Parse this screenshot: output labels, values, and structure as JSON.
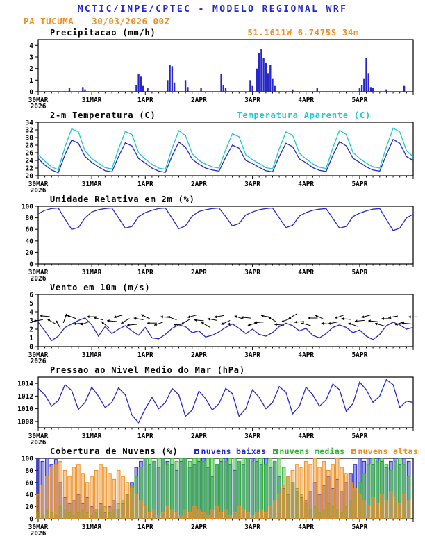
{
  "header": {
    "title": "MCTIC/INPE/CPTEC - MODELO REGIONAL WRF",
    "station": "PA TUCUMA",
    "run": "30/03/2026 00Z"
  },
  "colors": {
    "blue": "#2828c8",
    "cyan": "#1ec9c9",
    "green": "#2eb82e",
    "orange": "#ee8f1f",
    "black": "#000000"
  },
  "x_axis": {
    "range": [
      0,
      168
    ],
    "minor_step": 3,
    "ticks": [
      {
        "h": 0,
        "label": "30MAR",
        "sub": "2026"
      },
      {
        "h": 24,
        "label": "31MAR"
      },
      {
        "h": 48,
        "label": "1APR"
      },
      {
        "h": 72,
        "label": "2APR"
      },
      {
        "h": 96,
        "label": "3APR"
      },
      {
        "h": 120,
        "label": "4APR"
      },
      {
        "h": 144,
        "label": "5APR"
      }
    ]
  },
  "chart_data": [
    {
      "id": "precip",
      "type": "bar",
      "title": "Precipitacao (mm/h)",
      "right_label": "51.1611W 6.7475S 34m",
      "ylim": [
        0,
        4.5
      ],
      "yticks": [
        0,
        1,
        2,
        3,
        4
      ],
      "bar_width": 2.4,
      "series": [
        {
          "name": "precipitation",
          "color_key": "blue",
          "points": [
            [
              14,
              0.3
            ],
            [
              20,
              0.4
            ],
            [
              21,
              0.2
            ],
            [
              44,
              0.6
            ],
            [
              45,
              1.5
            ],
            [
              46,
              1.3
            ],
            [
              47,
              0.5
            ],
            [
              49,
              0.3
            ],
            [
              58,
              1.0
            ],
            [
              59,
              2.3
            ],
            [
              60,
              2.2
            ],
            [
              61,
              0.8
            ],
            [
              66,
              1.0
            ],
            [
              67,
              0.4
            ],
            [
              73,
              0.3
            ],
            [
              82,
              1.5
            ],
            [
              83,
              0.6
            ],
            [
              84,
              0.3
            ],
            [
              95,
              1.0
            ],
            [
              96,
              0.5
            ],
            [
              98,
              2.0
            ],
            [
              99,
              3.3
            ],
            [
              100,
              3.7
            ],
            [
              101,
              2.9
            ],
            [
              102,
              2.5
            ],
            [
              103,
              1.6
            ],
            [
              104,
              2.3
            ],
            [
              105,
              1.1
            ],
            [
              106,
              0.5
            ],
            [
              114,
              0.2
            ],
            [
              125,
              0.3
            ],
            [
              144,
              0.3
            ],
            [
              145,
              0.6
            ],
            [
              146,
              1.1
            ],
            [
              147,
              2.9
            ],
            [
              148,
              1.6
            ],
            [
              149,
              0.4
            ],
            [
              150,
              0.3
            ],
            [
              156,
              0.2
            ],
            [
              164,
              0.5
            ]
          ]
        }
      ]
    },
    {
      "id": "temp",
      "type": "line",
      "title": "2-m Temperatura (C)",
      "right_label": "Temperatura Aparente (C)",
      "ylim": [
        20,
        34
      ],
      "yticks": [
        20,
        22,
        24,
        26,
        28,
        30,
        32,
        34
      ],
      "x_step": 3,
      "series": [
        {
          "name": "2m-temperature",
          "color_key": "blue",
          "values": [
            24.5,
            22.8,
            21.5,
            20.8,
            25.5,
            29.3,
            28.5,
            25.0,
            23.5,
            22.3,
            21.3,
            21.0,
            25.0,
            28.6,
            27.8,
            24.5,
            23.3,
            22.0,
            21.2,
            20.9,
            25.2,
            28.8,
            27.5,
            24.3,
            23.0,
            22.0,
            21.5,
            21.2,
            24.8,
            28.0,
            27.2,
            24.0,
            23.2,
            22.2,
            21.3,
            21.0,
            25.0,
            28.5,
            27.6,
            24.4,
            23.4,
            22.1,
            21.4,
            21.1,
            25.3,
            28.9,
            27.8,
            24.6,
            23.5,
            22.3,
            21.5,
            21.2,
            25.5,
            29.5,
            28.5,
            25.0,
            24.0
          ]
        },
        {
          "name": "apparent-temperature",
          "color_key": "cyan",
          "values": [
            25.5,
            23.8,
            22.3,
            21.6,
            27.5,
            32.3,
            31.5,
            26.5,
            24.5,
            23.3,
            22.1,
            21.8,
            27.0,
            31.6,
            30.8,
            26.0,
            24.3,
            23.0,
            22.0,
            21.7,
            27.2,
            31.8,
            30.5,
            25.8,
            24.0,
            23.0,
            22.3,
            22.0,
            26.8,
            31.0,
            30.2,
            25.5,
            24.2,
            23.2,
            22.1,
            21.8,
            27.0,
            31.5,
            30.6,
            25.9,
            24.4,
            23.1,
            22.2,
            21.9,
            27.3,
            31.9,
            30.8,
            26.1,
            24.5,
            23.3,
            22.3,
            22.0,
            27.5,
            32.5,
            31.5,
            26.5,
            25.0
          ]
        }
      ]
    },
    {
      "id": "rh",
      "type": "line",
      "title": "Umidade Relativa em 2m (%)",
      "ylim": [
        0,
        100
      ],
      "yticks": [
        0,
        20,
        40,
        60,
        80,
        100
      ],
      "x_step": 3,
      "series": [
        {
          "name": "relative-humidity",
          "color_key": "blue",
          "values": [
            87,
            93,
            96,
            97,
            78,
            60,
            63,
            80,
            90,
            94,
            96,
            97,
            80,
            62,
            65,
            82,
            89,
            93,
            96,
            97,
            79,
            61,
            66,
            83,
            91,
            94,
            96,
            97,
            82,
            66,
            70,
            85,
            90,
            94,
            96,
            97,
            80,
            63,
            67,
            83,
            89,
            93,
            95,
            96,
            79,
            62,
            65,
            82,
            88,
            92,
            95,
            96,
            77,
            58,
            62,
            80,
            86
          ]
        }
      ]
    },
    {
      "id": "wind",
      "type": "line",
      "title": "Vento em 10m (m/s)",
      "ylim": [
        0,
        6
      ],
      "yticks": [
        0,
        1,
        2,
        3,
        4,
        5,
        6
      ],
      "x_step": 3,
      "series": [
        {
          "name": "wind-speed-10m",
          "color_key": "blue",
          "values": [
            2.8,
            1.8,
            0.7,
            1.2,
            2.2,
            2.6,
            3.0,
            3.3,
            2.5,
            1.2,
            2.3,
            1.5,
            2.0,
            2.4,
            1.8,
            1.3,
            2.2,
            1.0,
            0.9,
            1.4,
            2.1,
            2.5,
            2.3,
            1.6,
            1.8,
            1.1,
            1.3,
            1.7,
            2.2,
            2.6,
            2.1,
            1.5,
            2.0,
            1.4,
            1.2,
            1.6,
            2.3,
            2.7,
            2.4,
            1.8,
            2.1,
            1.3,
            1.0,
            1.5,
            2.2,
            2.5,
            2.2,
            1.6,
            1.9,
            1.2,
            0.8,
            1.4,
            2.4,
            2.8,
            2.5,
            2.0,
            2.2
          ]
        }
      ],
      "barbs": {
        "name": "wind-direction-arrows",
        "color_key": "black",
        "x_step": 3,
        "base_y": 3,
        "dirs": [
          80,
          95,
          120,
          150,
          200,
          110,
          85,
          70,
          90,
          105,
          130,
          95,
          75,
          60,
          85,
          100,
          115,
          90,
          70,
          95,
          110,
          85,
          60,
          75,
          95,
          120,
          100,
          80,
          65,
          90,
          110,
          95,
          75,
          85,
          100,
          120,
          95,
          70,
          60,
          85,
          105,
          90,
          115,
          95,
          80,
          70,
          95,
          110,
          85,
          75,
          95,
          105,
          90,
          80,
          70,
          95,
          90
        ]
      }
    },
    {
      "id": "pressure",
      "type": "line",
      "title": "Pressao ao Nivel Medio do Mar (hPa)",
      "ylim": [
        1007,
        1015
      ],
      "yticks": [
        1008,
        1010,
        1012,
        1014
      ],
      "x_step": 3,
      "series": [
        {
          "name": "mean-sea-level-pressure",
          "color_key": "blue",
          "values": [
            1013.2,
            1012.2,
            1010.4,
            1011.3,
            1013.8,
            1012.9,
            1009.9,
            1011.0,
            1013.4,
            1012.0,
            1010.2,
            1011.0,
            1013.3,
            1012.2,
            1009.0,
            1007.8,
            1010.0,
            1011.8,
            1010.0,
            1011.0,
            1013.2,
            1012.2,
            1008.8,
            1009.8,
            1012.8,
            1011.6,
            1009.8,
            1010.8,
            1013.2,
            1012.4,
            1008.8,
            1010.0,
            1013.0,
            1011.8,
            1010.0,
            1011.0,
            1013.5,
            1012.6,
            1009.2,
            1010.4,
            1013.4,
            1012.2,
            1010.4,
            1011.4,
            1013.9,
            1013.0,
            1009.6,
            1010.8,
            1014.2,
            1013.0,
            1011.0,
            1012.0,
            1014.6,
            1013.8,
            1010.2,
            1011.2,
            1011.0
          ]
        }
      ]
    },
    {
      "id": "clouds",
      "type": "bar-multi",
      "title": "Cobertura de Nuvens (%)",
      "ylim": [
        0,
        100
      ],
      "yticks": [
        0,
        20,
        40,
        60,
        80,
        100
      ],
      "x_step": 2,
      "bar_width": 4.6,
      "legend": [
        {
          "label": "nuvens baixas",
          "color_key": "blue"
        },
        {
          "label": "nuvens medias",
          "color_key": "green"
        },
        {
          "label": "nuvens altas",
          "color_key": "orange"
        }
      ],
      "series": [
        {
          "name": "low-clouds",
          "color_key": "blue",
          "values": [
            100,
            95,
            100,
            90,
            98,
            60,
            35,
            25,
            30,
            40,
            25,
            35,
            20,
            15,
            25,
            10,
            20,
            30,
            15,
            25,
            40,
            60,
            85,
            95,
            100,
            90,
            95,
            85,
            100,
            95,
            90,
            80,
            95,
            100,
            85,
            90,
            95,
            100,
            85,
            70,
            90,
            95,
            100,
            90,
            80,
            95,
            90,
            100,
            100,
            95,
            90,
            100,
            85,
            95,
            70,
            50,
            40,
            60,
            45,
            35,
            30,
            45,
            60,
            40,
            55,
            70,
            50,
            65,
            45,
            60,
            75,
            90,
            100,
            95,
            100,
            90,
            100,
            95,
            85,
            95,
            100,
            90,
            100,
            95
          ]
        },
        {
          "name": "mid-clouds",
          "color_key": "green",
          "values": [
            10,
            5,
            15,
            10,
            5,
            20,
            15,
            10,
            5,
            10,
            15,
            10,
            5,
            10,
            15,
            20,
            10,
            15,
            25,
            30,
            40,
            55,
            70,
            85,
            100,
            100,
            95,
            100,
            100,
            90,
            100,
            95,
            100,
            100,
            95,
            100,
            100,
            95,
            100,
            100,
            90,
            100,
            95,
            100,
            100,
            95,
            100,
            100,
            95,
            100,
            100,
            90,
            100,
            95,
            100,
            85,
            70,
            60,
            50,
            40,
            25,
            15,
            20,
            10,
            15,
            25,
            20,
            15,
            10,
            20,
            30,
            45,
            60,
            75,
            90,
            100,
            95,
            100,
            90,
            80,
            95,
            100,
            90,
            70
          ]
        },
        {
          "name": "high-clouds",
          "color_key": "orange",
          "values": [
            40,
            55,
            70,
            85,
            90,
            95,
            80,
            70,
            85,
            90,
            75,
            60,
            70,
            80,
            90,
            85,
            75,
            65,
            80,
            70,
            60,
            50,
            40,
            30,
            20,
            10,
            15,
            5,
            10,
            20,
            15,
            10,
            5,
            15,
            10,
            20,
            15,
            10,
            5,
            15,
            20,
            10,
            15,
            5,
            10,
            20,
            15,
            10,
            5,
            10,
            15,
            10,
            20,
            30,
            40,
            55,
            70,
            80,
            90,
            85,
            95,
            90,
            100,
            85,
            95,
            80,
            90,
            100,
            85,
            75,
            60,
            50,
            40,
            30,
            20,
            35,
            25,
            40,
            30,
            45,
            35,
            25,
            40,
            30
          ]
        }
      ]
    }
  ]
}
